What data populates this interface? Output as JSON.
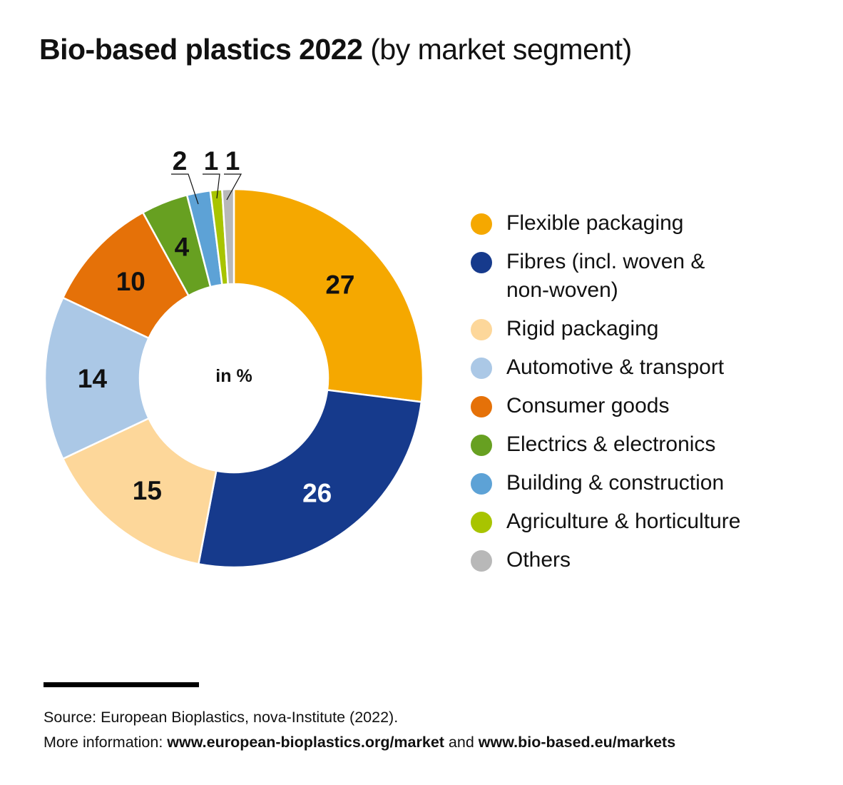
{
  "title": {
    "bold": "Bio-based plastics 2022",
    "rest": "(by market segment)"
  },
  "chart_data": {
    "type": "pie",
    "title": "Bio-based plastics 2022 (by market segment)",
    "unit_label": "in %",
    "segments": [
      {
        "label": "Flexible packaging",
        "value": 27,
        "color": "#F5A800"
      },
      {
        "label": "Fibres (incl. woven & non-woven)",
        "value": 26,
        "color": "#163A8C"
      },
      {
        "label": "Rigid packaging",
        "value": 15,
        "color": "#FDD79A"
      },
      {
        "label": "Automotive & transport",
        "value": 14,
        "color": "#ABC8E6"
      },
      {
        "label": "Consumer goods",
        "value": 10,
        "color": "#E57108"
      },
      {
        "label": "Electrics & electronics",
        "value": 4,
        "color": "#67A021"
      },
      {
        "label": "Building & construction",
        "value": 2,
        "color": "#5DA2D6"
      },
      {
        "label": "Agriculture & horticulture",
        "value": 1,
        "color": "#A8C400"
      },
      {
        "label": "Others",
        "value": 1,
        "color": "#B8B8B8"
      }
    ],
    "legend_placement": "right"
  },
  "legend_lines": {
    "fibres_line1": "Fibres (incl. woven &",
    "fibres_line2": "non-woven)"
  },
  "source": {
    "line1": "Source: European Bioplastics, nova-Institute (2022).",
    "line2_prefix": "More information: ",
    "link1": "www.european-bioplastics.org/market",
    "connector": " and ",
    "link2": "www.bio-based.eu/markets"
  }
}
